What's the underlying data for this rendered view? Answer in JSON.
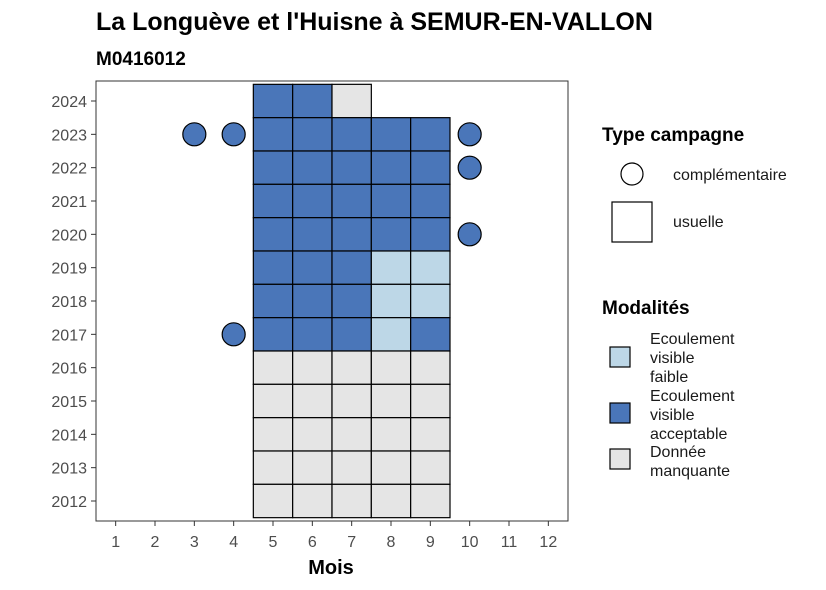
{
  "chart_data": {
    "type": "heatmap",
    "title": "La Longuève et l'Huisne à SEMUR-EN-VALLON",
    "subtitle": "M0416012",
    "xlabel": "Mois",
    "ylabel": "",
    "x_ticks": [
      1,
      2,
      3,
      4,
      5,
      6,
      7,
      8,
      9,
      10,
      11,
      12
    ],
    "y_ticks": [
      2012,
      2013,
      2014,
      2015,
      2016,
      2017,
      2018,
      2019,
      2020,
      2021,
      2022,
      2023,
      2024
    ],
    "xlim": [
      0.5,
      12.5
    ],
    "ylim": [
      2011.4,
      2024.6
    ],
    "grid": false,
    "legend_placement": "right",
    "colors": {
      "Ecoulement visible faible": "#bdd7e7",
      "Ecoulement visible acceptable": "#4a76b9",
      "Donnée manquante": "#e5e5e5"
    },
    "usuelle_cells": [
      {
        "year": 2024,
        "month": 5,
        "value": "Ecoulement visible acceptable"
      },
      {
        "year": 2024,
        "month": 6,
        "value": "Ecoulement visible acceptable"
      },
      {
        "year": 2024,
        "month": 7,
        "value": "Donnée manquante"
      },
      {
        "year": 2023,
        "month": 5,
        "value": "Ecoulement visible acceptable"
      },
      {
        "year": 2023,
        "month": 6,
        "value": "Ecoulement visible acceptable"
      },
      {
        "year": 2023,
        "month": 7,
        "value": "Ecoulement visible acceptable"
      },
      {
        "year": 2023,
        "month": 8,
        "value": "Ecoulement visible acceptable"
      },
      {
        "year": 2023,
        "month": 9,
        "value": "Ecoulement visible acceptable"
      },
      {
        "year": 2022,
        "month": 5,
        "value": "Ecoulement visible acceptable"
      },
      {
        "year": 2022,
        "month": 6,
        "value": "Ecoulement visible acceptable"
      },
      {
        "year": 2022,
        "month": 7,
        "value": "Ecoulement visible acceptable"
      },
      {
        "year": 2022,
        "month": 8,
        "value": "Ecoulement visible acceptable"
      },
      {
        "year": 2022,
        "month": 9,
        "value": "Ecoulement visible acceptable"
      },
      {
        "year": 2021,
        "month": 5,
        "value": "Ecoulement visible acceptable"
      },
      {
        "year": 2021,
        "month": 6,
        "value": "Ecoulement visible acceptable"
      },
      {
        "year": 2021,
        "month": 7,
        "value": "Ecoulement visible acceptable"
      },
      {
        "year": 2021,
        "month": 8,
        "value": "Ecoulement visible acceptable"
      },
      {
        "year": 2021,
        "month": 9,
        "value": "Ecoulement visible acceptable"
      },
      {
        "year": 2020,
        "month": 5,
        "value": "Ecoulement visible acceptable"
      },
      {
        "year": 2020,
        "month": 6,
        "value": "Ecoulement visible acceptable"
      },
      {
        "year": 2020,
        "month": 7,
        "value": "Ecoulement visible acceptable"
      },
      {
        "year": 2020,
        "month": 8,
        "value": "Ecoulement visible acceptable"
      },
      {
        "year": 2020,
        "month": 9,
        "value": "Ecoulement visible acceptable"
      },
      {
        "year": 2019,
        "month": 5,
        "value": "Ecoulement visible acceptable"
      },
      {
        "year": 2019,
        "month": 6,
        "value": "Ecoulement visible acceptable"
      },
      {
        "year": 2019,
        "month": 7,
        "value": "Ecoulement visible acceptable"
      },
      {
        "year": 2019,
        "month": 8,
        "value": "Ecoulement visible faible"
      },
      {
        "year": 2019,
        "month": 9,
        "value": "Ecoulement visible faible"
      },
      {
        "year": 2018,
        "month": 5,
        "value": "Ecoulement visible acceptable"
      },
      {
        "year": 2018,
        "month": 6,
        "value": "Ecoulement visible acceptable"
      },
      {
        "year": 2018,
        "month": 7,
        "value": "Ecoulement visible acceptable"
      },
      {
        "year": 2018,
        "month": 8,
        "value": "Ecoulement visible faible"
      },
      {
        "year": 2018,
        "month": 9,
        "value": "Ecoulement visible faible"
      },
      {
        "year": 2017,
        "month": 5,
        "value": "Ecoulement visible acceptable"
      },
      {
        "year": 2017,
        "month": 6,
        "value": "Ecoulement visible acceptable"
      },
      {
        "year": 2017,
        "month": 7,
        "value": "Ecoulement visible acceptable"
      },
      {
        "year": 2017,
        "month": 8,
        "value": "Ecoulement visible faible"
      },
      {
        "year": 2017,
        "month": 9,
        "value": "Ecoulement visible acceptable"
      },
      {
        "year": 2016,
        "month": 5,
        "value": "Donnée manquante"
      },
      {
        "year": 2016,
        "month": 6,
        "value": "Donnée manquante"
      },
      {
        "year": 2016,
        "month": 7,
        "value": "Donnée manquante"
      },
      {
        "year": 2016,
        "month": 8,
        "value": "Donnée manquante"
      },
      {
        "year": 2016,
        "month": 9,
        "value": "Donnée manquante"
      },
      {
        "year": 2015,
        "month": 5,
        "value": "Donnée manquante"
      },
      {
        "year": 2015,
        "month": 6,
        "value": "Donnée manquante"
      },
      {
        "year": 2015,
        "month": 7,
        "value": "Donnée manquante"
      },
      {
        "year": 2015,
        "month": 8,
        "value": "Donnée manquante"
      },
      {
        "year": 2015,
        "month": 9,
        "value": "Donnée manquante"
      },
      {
        "year": 2014,
        "month": 5,
        "value": "Donnée manquante"
      },
      {
        "year": 2014,
        "month": 6,
        "value": "Donnée manquante"
      },
      {
        "year": 2014,
        "month": 7,
        "value": "Donnée manquante"
      },
      {
        "year": 2014,
        "month": 8,
        "value": "Donnée manquante"
      },
      {
        "year": 2014,
        "month": 9,
        "value": "Donnée manquante"
      },
      {
        "year": 2013,
        "month": 5,
        "value": "Donnée manquante"
      },
      {
        "year": 2013,
        "month": 6,
        "value": "Donnée manquante"
      },
      {
        "year": 2013,
        "month": 7,
        "value": "Donnée manquante"
      },
      {
        "year": 2013,
        "month": 8,
        "value": "Donnée manquante"
      },
      {
        "year": 2013,
        "month": 9,
        "value": "Donnée manquante"
      },
      {
        "year": 2012,
        "month": 5,
        "value": "Donnée manquante"
      },
      {
        "year": 2012,
        "month": 6,
        "value": "Donnée manquante"
      },
      {
        "year": 2012,
        "month": 7,
        "value": "Donnée manquante"
      },
      {
        "year": 2012,
        "month": 8,
        "value": "Donnée manquante"
      },
      {
        "year": 2012,
        "month": 9,
        "value": "Donnée manquante"
      }
    ],
    "complementaire_points": [
      {
        "year": 2023,
        "month": 3,
        "value": "Ecoulement visible acceptable"
      },
      {
        "year": 2023,
        "month": 4,
        "value": "Ecoulement visible acceptable"
      },
      {
        "year": 2023,
        "month": 10,
        "value": "Ecoulement visible acceptable"
      },
      {
        "year": 2022,
        "month": 10,
        "value": "Ecoulement visible acceptable"
      },
      {
        "year": 2020,
        "month": 10,
        "value": "Ecoulement visible acceptable"
      },
      {
        "year": 2017,
        "month": 4,
        "value": "Ecoulement visible acceptable"
      }
    ],
    "legend_type": {
      "title": "Type campagne",
      "items": [
        {
          "label": "complémentaire",
          "shape": "circle"
        },
        {
          "label": "usuelle",
          "shape": "square"
        }
      ]
    },
    "legend_modalites": {
      "title": "Modalités",
      "items": [
        {
          "label": "Ecoulement visible faible",
          "lines": [
            "Ecoulement",
            "visible",
            "faible"
          ],
          "color": "#bdd7e7"
        },
        {
          "label": "Ecoulement visible acceptable",
          "lines": [
            "Ecoulement",
            "visible",
            "acceptable"
          ],
          "color": "#4a76b9"
        },
        {
          "label": "Donnée manquante",
          "lines": [
            "Donnée",
            "manquante"
          ],
          "color": "#e5e5e5"
        }
      ]
    }
  }
}
